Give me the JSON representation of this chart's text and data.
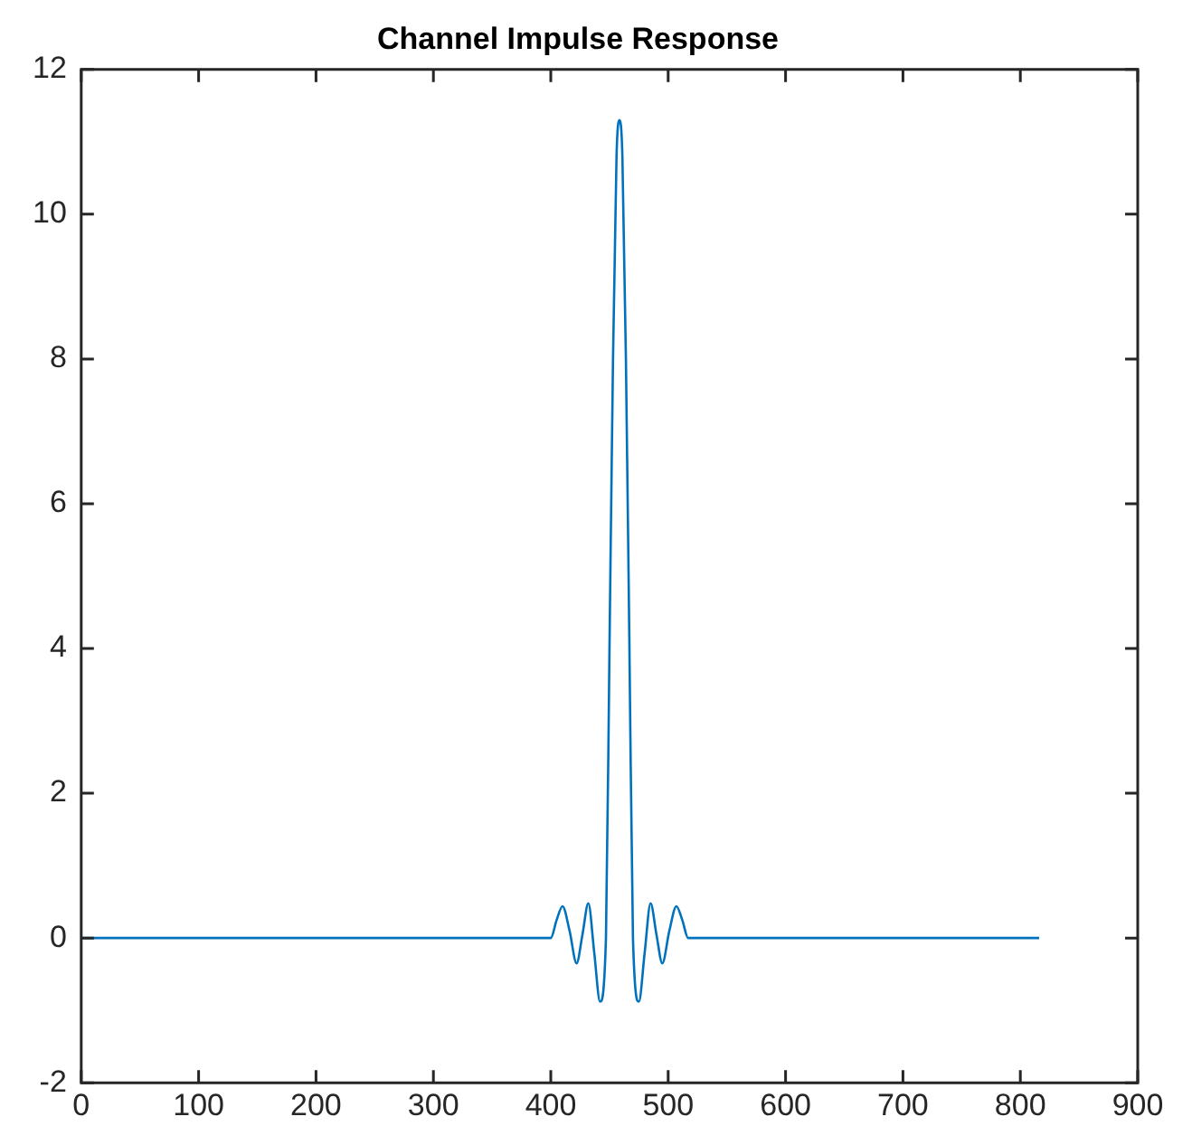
{
  "chart_data": {
    "type": "line",
    "title": "Channel Impulse Response",
    "x": [
      0,
      400,
      405,
      410,
      416,
      422,
      427,
      432,
      437,
      442,
      447,
      450,
      453,
      456,
      458.5,
      461,
      464,
      467,
      470,
      475,
      480,
      485,
      490,
      495,
      501,
      507,
      512,
      517,
      816
    ],
    "series": [
      {
        "color": "#0072bd",
        "values": [
          0,
          0,
          0.25,
          0.44,
          0.1,
          -0.35,
          0.05,
          0.48,
          -0.2,
          -0.88,
          0,
          4,
          8,
          10.8,
          11.3,
          10.8,
          8,
          4,
          0,
          -0.88,
          -0.2,
          0.48,
          0.05,
          -0.35,
          0.1,
          0.44,
          0.25,
          0,
          0
        ]
      }
    ],
    "xlim": [
      0,
      900
    ],
    "xticks": [
      0,
      100,
      200,
      300,
      400,
      500,
      600,
      700,
      800,
      900
    ],
    "ylim": [
      -2,
      12
    ],
    "yticks": [
      -2,
      0,
      2,
      4,
      6,
      8,
      10,
      12
    ],
    "grid": false,
    "legend": false,
    "marker": "none",
    "line_style": "solid"
  }
}
